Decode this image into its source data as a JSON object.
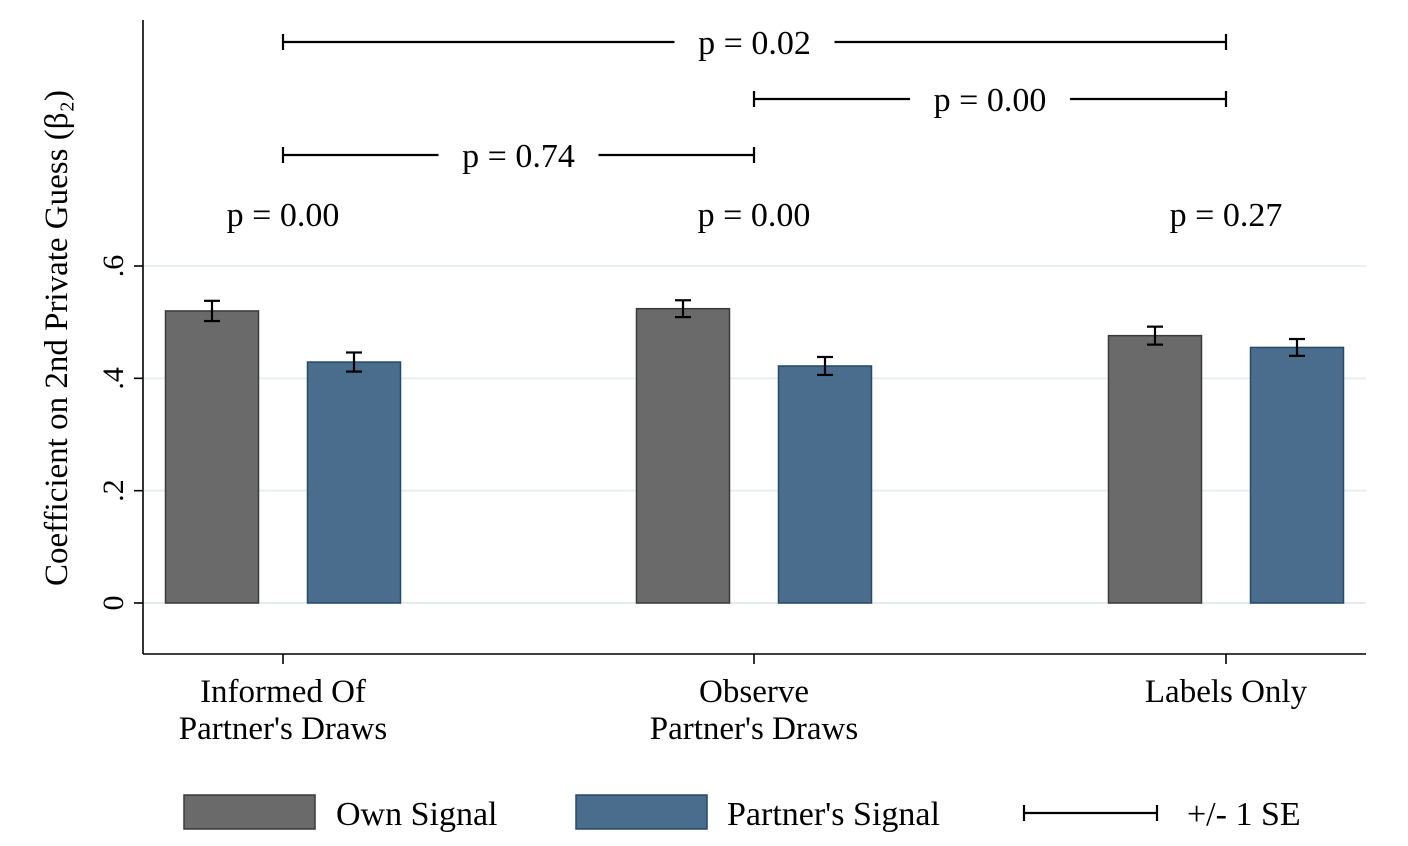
{
  "chart_data": {
    "type": "bar",
    "ylabel": "Coefficient on 2nd Private Guess (β₂)",
    "ylim": [
      -0.09,
      1.04
    ],
    "yticks": [
      {
        "value": 0,
        "label": "0"
      },
      {
        "value": 0.2,
        "label": ".2"
      },
      {
        "value": 0.4,
        "label": ".4"
      },
      {
        "value": 0.6,
        "label": ".6"
      }
    ],
    "grid": true,
    "categories": [
      {
        "lines": [
          "Informed Of",
          "Partner's Draws"
        ]
      },
      {
        "lines": [
          "Observe",
          "Partner's Draws"
        ]
      },
      {
        "lines": [
          "Labels Only"
        ]
      }
    ],
    "series": [
      {
        "name": "Own Signal",
        "color": "#6a6a6a",
        "stroke": "#3a3a3a",
        "values": [
          0.52,
          0.524,
          0.476
        ],
        "se": [
          0.018,
          0.015,
          0.016
        ]
      },
      {
        "name": "Partner's Signal",
        "color": "#4a6d8e",
        "stroke": "#264968",
        "values": [
          0.429,
          0.422,
          0.455
        ],
        "se": [
          0.017,
          0.016,
          0.015
        ]
      }
    ],
    "within_pvalues": [
      "p = 0.00",
      "p = 0.00",
      "p = 0.27"
    ],
    "comparisons": [
      {
        "from": 0,
        "to": 2,
        "label": "p = 0.02",
        "level": 0
      },
      {
        "from": 1,
        "to": 2,
        "label": "p = 0.00",
        "level": 1
      },
      {
        "from": 0,
        "to": 1,
        "label": "p = 0.74",
        "level": 2
      }
    ],
    "legend": {
      "placement": "bottom",
      "se_label": "+/- 1 SE"
    }
  }
}
